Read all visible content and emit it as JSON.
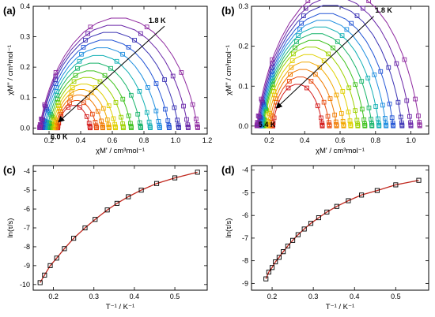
{
  "chart_data": [
    {
      "id": "a",
      "panel_label": "(a)",
      "type": "scatter",
      "xlabel": "χM' / cm³mol⁻¹",
      "ylabel": "χM'' / cm³mol⁻¹",
      "xlim": [
        0.1,
        1.2
      ],
      "ylim": [
        -0.02,
        0.4
      ],
      "xticks": [
        0.2,
        0.4,
        0.6,
        0.8,
        1.0,
        1.2
      ],
      "xtick_labels": [
        "0.2",
        "0.4",
        "0.6",
        "0.8",
        "1.0",
        "1.2"
      ],
      "yticks": [
        0.0,
        0.1,
        0.2,
        0.3,
        0.4
      ],
      "ytick_labels": [
        "0.0",
        "0.1",
        "0.2",
        "0.3",
        "0.4"
      ],
      "marker": "open-square",
      "fit": "solid line",
      "temperature_annotations": [
        {
          "text": "1.8 K",
          "x": 0.8,
          "y": 0.34
        },
        {
          "text": "6.0 K",
          "x": 0.26,
          "y": 0.0
        }
      ],
      "arrow": {
        "from": [
          0.93,
          0.335
        ],
        "to": [
          0.26,
          0.02
        ]
      },
      "series_colors": [
        "#d41c1c",
        "#e84a10",
        "#f07a00",
        "#f2a800",
        "#e0d000",
        "#9ed200",
        "#3ec21e",
        "#17b46a",
        "#12b0b4",
        "#1f8fe0",
        "#2456d6",
        "#3b33b4",
        "#6a26a8",
        "#8f2aa0"
      ],
      "series": [
        {
          "chi_s": 0.255,
          "chi_t": 0.46,
          "alpha": 0.2
        },
        {
          "chi_s": 0.25,
          "chi_t": 0.5,
          "alpha": 0.2
        },
        {
          "chi_s": 0.24,
          "chi_t": 0.54,
          "alpha": 0.2
        },
        {
          "chi_s": 0.23,
          "chi_t": 0.58,
          "alpha": 0.2
        },
        {
          "chi_s": 0.22,
          "chi_t": 0.62,
          "alpha": 0.2
        },
        {
          "chi_s": 0.21,
          "chi_t": 0.67,
          "alpha": 0.2
        },
        {
          "chi_s": 0.2,
          "chi_t": 0.72,
          "alpha": 0.2
        },
        {
          "chi_s": 0.19,
          "chi_t": 0.78,
          "alpha": 0.2
        },
        {
          "chi_s": 0.18,
          "chi_t": 0.84,
          "alpha": 0.2
        },
        {
          "chi_s": 0.17,
          "chi_t": 0.9,
          "alpha": 0.2
        },
        {
          "chi_s": 0.16,
          "chi_t": 0.96,
          "alpha": 0.2
        },
        {
          "chi_s": 0.15,
          "chi_t": 1.02,
          "alpha": 0.2
        },
        {
          "chi_s": 0.145,
          "chi_t": 1.08,
          "alpha": 0.2
        },
        {
          "chi_s": 0.14,
          "chi_t": 1.14,
          "alpha": 0.2
        }
      ]
    },
    {
      "id": "b",
      "panel_label": "(b)",
      "type": "scatter",
      "xlabel": "χM' / cm³mol⁻¹",
      "ylabel": "χM'' / cm³mol⁻¹",
      "xlim": [
        0.1,
        1.1
      ],
      "ylim": [
        -0.02,
        0.3
      ],
      "xticks": [
        0.2,
        0.4,
        0.6,
        0.8,
        1.0
      ],
      "xtick_labels": [
        "0.2",
        "0.4",
        "0.6",
        "0.8",
        "1.0"
      ],
      "yticks": [
        0.0,
        0.1,
        0.2,
        0.3
      ],
      "ytick_labels": [
        "0.0",
        "0.1",
        "0.2",
        "0.3"
      ],
      "marker": "open-square",
      "fit": "solid line",
      "temperature_annotations": [
        {
          "text": "1.8 K",
          "x": 0.78,
          "y": 0.28
        },
        {
          "text": "5.4 K",
          "x": 0.22,
          "y": 0.025
        }
      ],
      "arrow": {
        "from": [
          0.79,
          0.275
        ],
        "to": [
          0.24,
          0.045
        ]
      },
      "series_colors": [
        "#d41c1c",
        "#e84a10",
        "#f07a00",
        "#f2a800",
        "#e0d000",
        "#9ed200",
        "#3ec21e",
        "#17b46a",
        "#12b0b4",
        "#1f8fe0",
        "#2456d6",
        "#3b33b4",
        "#6a26a8",
        "#8f2aa0"
      ],
      "series": [
        {
          "chi_s": 0.22,
          "chi_t": 0.5,
          "alpha": 0.18
        },
        {
          "chi_s": 0.21,
          "chi_t": 0.54,
          "alpha": 0.18
        },
        {
          "chi_s": 0.2,
          "chi_t": 0.58,
          "alpha": 0.18
        },
        {
          "chi_s": 0.19,
          "chi_t": 0.62,
          "alpha": 0.18
        },
        {
          "chi_s": 0.18,
          "chi_t": 0.66,
          "alpha": 0.18
        },
        {
          "chi_s": 0.17,
          "chi_t": 0.7,
          "alpha": 0.18
        },
        {
          "chi_s": 0.165,
          "chi_t": 0.74,
          "alpha": 0.18
        },
        {
          "chi_s": 0.16,
          "chi_t": 0.78,
          "alpha": 0.18
        },
        {
          "chi_s": 0.155,
          "chi_t": 0.82,
          "alpha": 0.18
        },
        {
          "chi_s": 0.15,
          "chi_t": 0.86,
          "alpha": 0.18
        },
        {
          "chi_s": 0.145,
          "chi_t": 0.9,
          "alpha": 0.18
        },
        {
          "chi_s": 0.14,
          "chi_t": 0.95,
          "alpha": 0.18
        },
        {
          "chi_s": 0.135,
          "chi_t": 1.0,
          "alpha": 0.18
        },
        {
          "chi_s": 0.13,
          "chi_t": 1.05,
          "alpha": 0.18
        }
      ]
    },
    {
      "id": "c",
      "panel_label": "(c)",
      "type": "line",
      "xlabel": "T⁻¹ / K⁻¹",
      "ylabel": "ln(τ/s)",
      "xlim": [
        0.15,
        0.58
      ],
      "ylim": [
        -10.3,
        -3.7
      ],
      "xticks": [
        0.2,
        0.3,
        0.4,
        0.5
      ],
      "xtick_labels": [
        "0.2",
        "0.3",
        "0.4",
        "0.5"
      ],
      "yticks": [
        -10,
        -9,
        -8,
        -7,
        -6,
        -5,
        -4
      ],
      "ytick_labels": [
        "-10",
        "-9",
        "-8",
        "-7",
        "-6",
        "-5",
        "-4"
      ],
      "marker": "open-square",
      "marker_color": "#000000",
      "line_color": "#c0281e",
      "x": [
        0.167,
        0.178,
        0.192,
        0.208,
        0.227,
        0.25,
        0.278,
        0.303,
        0.333,
        0.357,
        0.385,
        0.417,
        0.455,
        0.5,
        0.556
      ],
      "y": [
        -9.9,
        -9.5,
        -9.0,
        -8.6,
        -8.1,
        -7.55,
        -7.0,
        -6.55,
        -6.05,
        -5.7,
        -5.35,
        -5.0,
        -4.65,
        -4.35,
        -4.05
      ]
    },
    {
      "id": "d",
      "panel_label": "(d)",
      "type": "line",
      "xlabel": "T⁻¹ / K⁻¹",
      "ylabel": "ln(τ/s)",
      "xlim": [
        0.15,
        0.58
      ],
      "ylim": [
        -9.3,
        -3.8
      ],
      "xticks": [
        0.2,
        0.3,
        0.4,
        0.5
      ],
      "xtick_labels": [
        "0.2",
        "0.3",
        "0.4",
        "0.5"
      ],
      "yticks": [
        -9,
        -8,
        -7,
        -6,
        -5,
        -4
      ],
      "ytick_labels": [
        "-9",
        "-8",
        "-7",
        "-6",
        "-5",
        "-4"
      ],
      "marker": "open-square",
      "marker_color": "#000000",
      "line_color": "#c0281e",
      "x": [
        0.185,
        0.192,
        0.2,
        0.208,
        0.217,
        0.227,
        0.238,
        0.25,
        0.263,
        0.278,
        0.294,
        0.313,
        0.333,
        0.357,
        0.385,
        0.417,
        0.455,
        0.5,
        0.556
      ],
      "y": [
        -8.8,
        -8.5,
        -8.3,
        -8.05,
        -7.85,
        -7.6,
        -7.35,
        -7.1,
        -6.85,
        -6.6,
        -6.35,
        -6.1,
        -5.85,
        -5.6,
        -5.35,
        -5.1,
        -4.9,
        -4.65,
        -4.45
      ]
    }
  ]
}
